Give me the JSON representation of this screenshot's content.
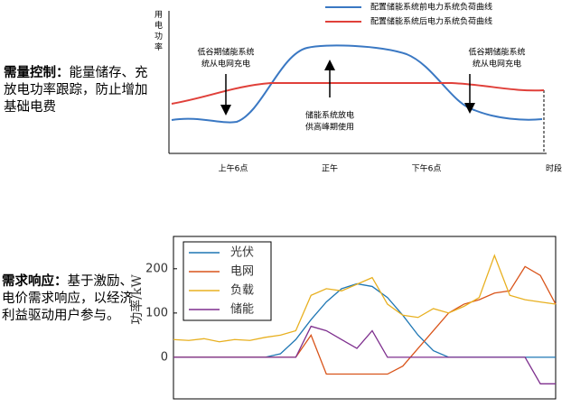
{
  "notes": [
    {
      "bold": "需量控制：",
      "text": "能量储存、充放电功率跟踪，防止增加基础电费"
    },
    {
      "bold": "需求响应：",
      "text": "基于激励、电价需求响应，以经济利益驱动用户参与。"
    }
  ],
  "chart_data": [
    {
      "type": "line",
      "ylabel": "用电功率",
      "xlabel": "时段",
      "categories": [
        "上午6点",
        "正午",
        "下午6点"
      ],
      "series": [
        {
          "name": "配置储能系统前电力系统负荷曲线",
          "color": "#3a78c3"
        },
        {
          "name": "配置储能系统后电力系统负荷曲线",
          "color": "#e0403a"
        }
      ],
      "annotations": [
        [
          "低谷期储能系统",
          "统从电网充电"
        ],
        [
          "储能系统放电",
          "供高峰期使用"
        ],
        [
          "低谷期储能系统",
          "统从电网充电"
        ]
      ]
    },
    {
      "type": "line",
      "ylabel": "功率/kW",
      "ylim": [
        -94,
        273
      ],
      "yticks": [
        0,
        100,
        200
      ],
      "xlim": [
        0,
        100
      ],
      "legend": "upper left",
      "x": [
        0,
        4,
        8,
        12,
        16,
        20,
        24,
        28,
        32,
        36,
        40,
        44,
        48,
        52,
        56,
        60,
        64,
        68,
        72,
        76,
        80,
        84,
        88,
        92,
        96,
        100
      ],
      "series": [
        {
          "name": "光伏",
          "color": "#1f77b4",
          "values": [
            0,
            0,
            0,
            0,
            0,
            0,
            0,
            8,
            40,
            85,
            125,
            155,
            166,
            160,
            135,
            95,
            50,
            15,
            0,
            0,
            0,
            0,
            0,
            0,
            0,
            0
          ]
        },
        {
          "name": "电网",
          "color": "#d9541a",
          "values": [
            0,
            0,
            0,
            0,
            0,
            0,
            0,
            0,
            0,
            50,
            -38,
            -38,
            -38,
            -38,
            -38,
            -20,
            20,
            60,
            100,
            120,
            130,
            145,
            150,
            205,
            185,
            120
          ]
        },
        {
          "name": "负载",
          "color": "#e8b020",
          "values": [
            40,
            38,
            42,
            35,
            40,
            38,
            45,
            50,
            60,
            140,
            155,
            150,
            165,
            180,
            120,
            95,
            90,
            110,
            100,
            115,
            135,
            230,
            140,
            130,
            125,
            120
          ]
        },
        {
          "name": "储能",
          "color": "#7e2f8e",
          "values": [
            0,
            0,
            0,
            0,
            0,
            0,
            0,
            0,
            0,
            70,
            60,
            40,
            20,
            60,
            0,
            0,
            0,
            0,
            0,
            0,
            0,
            0,
            0,
            0,
            -60,
            -60
          ]
        }
      ]
    }
  ]
}
